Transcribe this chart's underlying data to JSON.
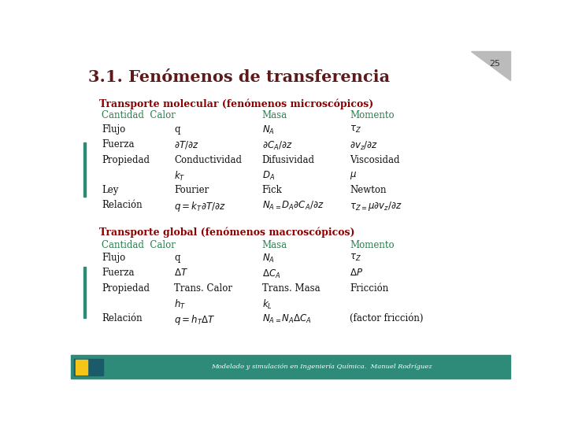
{
  "title": "3.1. Fenómenos de transferencia",
  "title_color": "#5C1A1A",
  "title_fontsize": 15,
  "page_number": "25",
  "background_color": "#FFFFFF",
  "section1_header": "Transporte molecular (fenómenos microscópicos)",
  "section2_header": "Transporte global (fenómenos macroscópicos)",
  "header_color": "#8B0000",
  "col_header_color": "#2E7D4F",
  "footer_text": "Modelado y simulación en Ingeniería Química.  Manuel Rodríguez",
  "footer_bg": "#2E8B7A",
  "left_accent_color": "#2E8B7A",
  "col_header_fontsize": 8.5,
  "body_fontsize": 8.5,
  "section_header_fontsize": 9.0,
  "col0": 0.07,
  "col1": 0.235,
  "col2": 0.435,
  "col3": 0.635
}
